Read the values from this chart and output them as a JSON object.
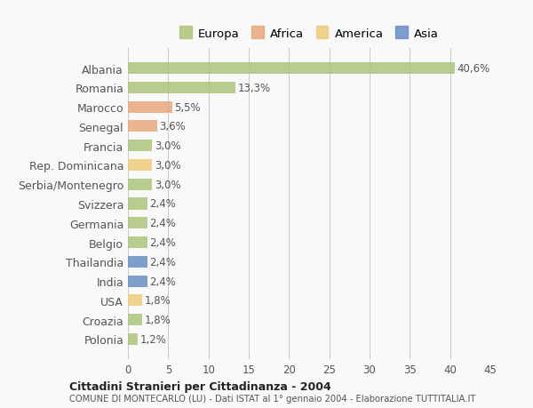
{
  "countries": [
    "Albania",
    "Romania",
    "Marocco",
    "Senegal",
    "Francia",
    "Rep. Dominicana",
    "Serbia/Montenegro",
    "Svizzera",
    "Germania",
    "Belgio",
    "Thailandia",
    "India",
    "USA",
    "Croazia",
    "Polonia"
  ],
  "values": [
    40.6,
    13.3,
    5.5,
    3.6,
    3.0,
    3.0,
    3.0,
    2.4,
    2.4,
    2.4,
    2.4,
    2.4,
    1.8,
    1.8,
    1.2
  ],
  "labels": [
    "40,6%",
    "13,3%",
    "5,5%",
    "3,6%",
    "3,0%",
    "3,0%",
    "3,0%",
    "2,4%",
    "2,4%",
    "2,4%",
    "2,4%",
    "2,4%",
    "1,8%",
    "1,8%",
    "1,2%"
  ],
  "colors": [
    "#adc57a",
    "#adc57a",
    "#e8a87c",
    "#e8a87c",
    "#adc57a",
    "#f0cc7a",
    "#adc57a",
    "#adc57a",
    "#adc57a",
    "#adc57a",
    "#6b8ec4",
    "#6b8ec4",
    "#f0cc7a",
    "#adc57a",
    "#adc57a"
  ],
  "legend": {
    "Europa": "#adc57a",
    "Africa": "#e8a87c",
    "America": "#f0cc7a",
    "Asia": "#6b8ec4"
  },
  "xlim": [
    0,
    45
  ],
  "xticks": [
    0,
    5,
    10,
    15,
    20,
    25,
    30,
    35,
    40,
    45
  ],
  "title": "Cittadini Stranieri per Cittadinanza - 2004",
  "subtitle": "COMUNE DI MONTECARLO (LU) - Dati ISTAT al 1° gennaio 2004 - Elaborazione TUTTITALIA.IT",
  "bg_color": "#f9f9f9",
  "bar_bg_color": "#ffffff",
  "grid_color": "#cccccc"
}
